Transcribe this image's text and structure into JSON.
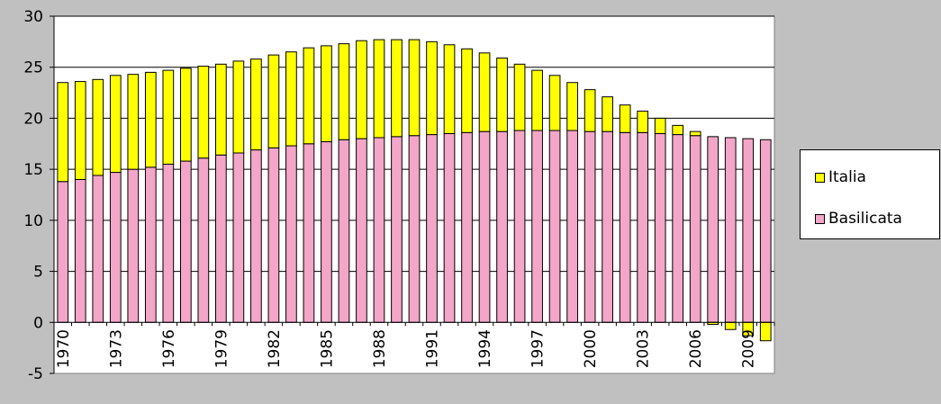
{
  "chart_data": {
    "type": "bar",
    "stacked": true,
    "title": "",
    "xlabel": "",
    "ylabel": "",
    "ylim": [
      -5,
      30
    ],
    "yticks": [
      -5,
      0,
      5,
      10,
      15,
      20,
      25,
      30
    ],
    "grid": true,
    "legend_position": "right",
    "categories": [
      "1970",
      "1971",
      "1972",
      "1973",
      "1974",
      "1975",
      "1976",
      "1977",
      "1978",
      "1979",
      "1980",
      "1981",
      "1982",
      "1983",
      "1984",
      "1985",
      "1986",
      "1987",
      "1988",
      "1989",
      "1990",
      "1991",
      "1992",
      "1993",
      "1994",
      "1995",
      "1996",
      "1997",
      "1998",
      "1999",
      "2000",
      "2001",
      "2002",
      "2003",
      "2004",
      "2005",
      "2006",
      "2007",
      "2008",
      "2009",
      "2010"
    ],
    "xtick_labels": [
      "1970",
      "1973",
      "1976",
      "1979",
      "1982",
      "1985",
      "1988",
      "1991",
      "1994",
      "1997",
      "2000",
      "2003",
      "2006",
      "2009"
    ],
    "series": [
      {
        "name": "Basilicata",
        "color": "#f4a6c8",
        "values": [
          13.8,
          14.0,
          14.4,
          14.7,
          15.0,
          15.2,
          15.5,
          15.8,
          16.1,
          16.4,
          16.6,
          16.9,
          17.1,
          17.3,
          17.5,
          17.7,
          17.9,
          18.0,
          18.1,
          18.2,
          18.3,
          18.4,
          18.5,
          18.6,
          18.7,
          18.7,
          18.8,
          18.8,
          18.8,
          18.8,
          18.7,
          18.7,
          18.6,
          18.6,
          18.5,
          18.4,
          18.3,
          18.2,
          18.1,
          18.0,
          17.9
        ]
      },
      {
        "name": "Italia",
        "color": "#ffff00",
        "values": [
          9.7,
          9.6,
          9.4,
          9.5,
          9.3,
          9.3,
          9.2,
          9.1,
          9.0,
          8.9,
          9.0,
          8.9,
          9.1,
          9.2,
          9.4,
          9.4,
          9.4,
          9.6,
          9.6,
          9.5,
          9.4,
          9.1,
          8.7,
          8.2,
          7.7,
          7.2,
          6.5,
          5.9,
          5.4,
          4.7,
          4.1,
          3.4,
          2.7,
          2.1,
          1.5,
          0.9,
          0.4,
          -0.2,
          -0.7,
          -1.3,
          -1.8
        ]
      }
    ]
  }
}
